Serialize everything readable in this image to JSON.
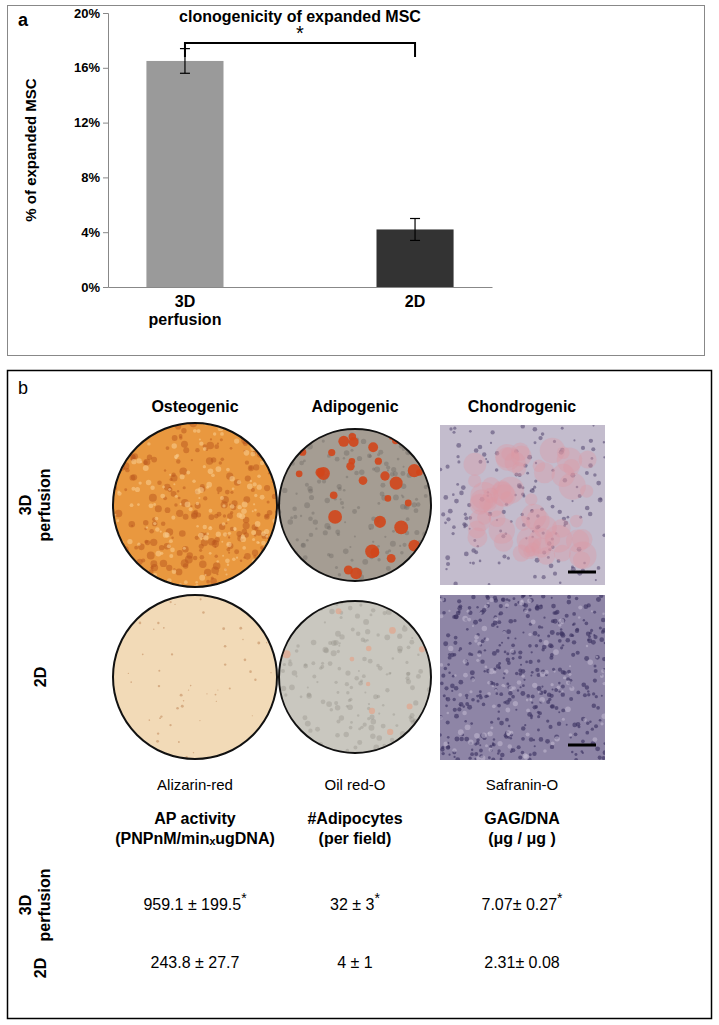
{
  "chart_data": {
    "type": "bar",
    "title": "clonogenicity of expanded MSC",
    "annotations": [
      "a",
      "*"
    ],
    "categories": [
      "3D perfusion",
      "2D"
    ],
    "values": [
      16.5,
      4.2
    ],
    "errors": [
      0.9,
      0.8
    ],
    "colors": [
      "#9a9a9a",
      "#333333"
    ],
    "ylabel": "% of expanded MSC",
    "ylim": [
      0,
      20
    ],
    "yticks": [
      {
        "value": 0,
        "label": "0%"
      },
      {
        "value": 4,
        "label": "4%"
      },
      {
        "value": 8,
        "label": "8%"
      },
      {
        "value": 12,
        "label": "12%"
      },
      {
        "value": 16,
        "label": "16%"
      },
      {
        "value": 20,
        "label": "20%"
      }
    ]
  },
  "panel_b": {
    "label": "b",
    "columns": [
      "Osteogenic",
      "Adipogenic",
      "Chondrogenic"
    ],
    "rows": [
      "3D perfusion",
      "2D"
    ],
    "stains": [
      "Alizarin-red",
      "Oil red-O",
      "Safranin-O"
    ],
    "table": {
      "headers": [
        [
          "AP activity",
          "(PNPnM/minₓugDNA)"
        ],
        [
          "#Adipocytes",
          "(per field)"
        ],
        [
          "GAG/DNA",
          "(μg / μg )"
        ]
      ],
      "rows": [
        {
          "label": "3D perfusion",
          "cells": [
            {
              "text": "959.1 ± 199.5",
              "sig": "*"
            },
            {
              "text": "32 ± 3",
              "sig": "*"
            },
            {
              "text": "7.07± 0.27",
              "sig": "*"
            }
          ]
        },
        {
          "label": "2D",
          "cells": [
            {
              "text": "243.8 ± 27.7"
            },
            {
              "text": "4 ± 1"
            },
            {
              "text": "2.31± 0.08"
            }
          ]
        }
      ]
    }
  }
}
